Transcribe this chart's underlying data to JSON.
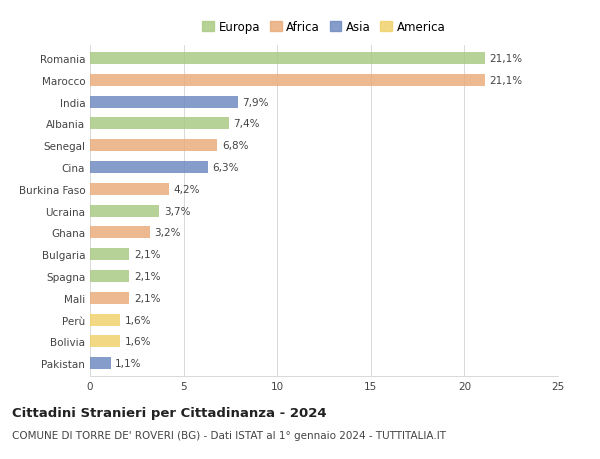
{
  "countries": [
    "Romania",
    "Marocco",
    "India",
    "Albania",
    "Senegal",
    "Cina",
    "Burkina Faso",
    "Ucraina",
    "Ghana",
    "Bulgaria",
    "Spagna",
    "Mali",
    "Perù",
    "Bolivia",
    "Pakistan"
  ],
  "values": [
    21.1,
    21.1,
    7.9,
    7.4,
    6.8,
    6.3,
    4.2,
    3.7,
    3.2,
    2.1,
    2.1,
    2.1,
    1.6,
    1.6,
    1.1
  ],
  "labels": [
    "21,1%",
    "21,1%",
    "7,9%",
    "7,4%",
    "6,8%",
    "6,3%",
    "4,2%",
    "3,7%",
    "3,2%",
    "2,1%",
    "2,1%",
    "2,1%",
    "1,6%",
    "1,6%",
    "1,1%"
  ],
  "continents": [
    "Europa",
    "Africa",
    "Asia",
    "Europa",
    "Africa",
    "Asia",
    "Africa",
    "Europa",
    "Africa",
    "Europa",
    "Europa",
    "Africa",
    "America",
    "America",
    "Asia"
  ],
  "continent_colors": {
    "Europa": "#a8c980",
    "Africa": "#e8aa78",
    "Asia": "#6b88c0",
    "America": "#f0d068"
  },
  "legend_entries": [
    "Europa",
    "Africa",
    "Asia",
    "America"
  ],
  "xlim": [
    0,
    25
  ],
  "xticks": [
    0,
    5,
    10,
    15,
    20,
    25
  ],
  "title1": "Cittadini Stranieri per Cittadinanza - 2024",
  "title2": "COMUNE DI TORRE DE' ROVERI (BG) - Dati ISTAT al 1° gennaio 2024 - TUTTITALIA.IT",
  "background_color": "#ffffff",
  "grid_color": "#d8d8d8",
  "bar_height": 0.55,
  "label_fontsize": 7.5,
  "tick_fontsize": 7.5,
  "legend_fontsize": 8.5,
  "title1_fontsize": 9.5,
  "title2_fontsize": 7.5
}
